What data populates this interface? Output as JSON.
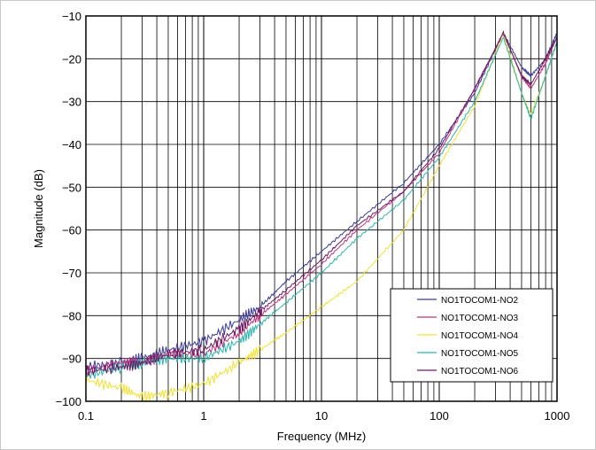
{
  "chart_data": {
    "type": "line",
    "xlabel": "Frequency (MHz)",
    "ylabel": "Magnitude (dB)",
    "xscale": "log",
    "xlim": [
      0.1,
      1000
    ],
    "ylim": [
      -100,
      -10
    ],
    "xticks": [
      "0.1",
      "1",
      "10",
      "100",
      "1000"
    ],
    "yticks": [
      "−10",
      "−20",
      "−30",
      "−40",
      "−50",
      "−60",
      "−70",
      "−80",
      "−90",
      "−100"
    ],
    "grid": true,
    "legend": "bottom-right",
    "x": [
      0.1,
      0.2,
      0.3,
      0.5,
      1,
      2,
      3,
      5,
      10,
      20,
      50,
      100,
      200,
      350,
      500,
      600,
      800,
      1000
    ],
    "series": [
      {
        "name": "NO1TOCOM1-NO2",
        "color": "#3a3a99",
        "values": [
          -92,
          -91,
          -90,
          -88,
          -86,
          -81,
          -78,
          -72,
          -65,
          -58,
          -49,
          -40,
          -28,
          -14,
          -22,
          -24,
          -20,
          -14
        ]
      },
      {
        "name": "NO1TOCOM1-NO3",
        "color": "#c0307a",
        "values": [
          -93,
          -91,
          -91,
          -89,
          -89,
          -84,
          -80,
          -75,
          -68,
          -60,
          -51,
          -42,
          -27,
          -14,
          -24,
          -27,
          -21,
          -15
        ]
      },
      {
        "name": "NO1TOCOM1-NO4",
        "color": "#f2e033",
        "values": [
          -95,
          -97,
          -99,
          -98,
          -96,
          -91,
          -88,
          -84,
          -78,
          -72,
          -60,
          -45,
          -31,
          -14,
          -28,
          -33,
          -24,
          -16
        ]
      },
      {
        "name": "NO1TOCOM1-NO5",
        "color": "#2ab5ae",
        "values": [
          -94,
          -92,
          -91,
          -90,
          -90,
          -86,
          -82,
          -77,
          -70,
          -62,
          -53,
          -43,
          -30,
          -15,
          -28,
          -34,
          -24,
          -16
        ]
      },
      {
        "name": "NO1TOCOM1-NO6",
        "color": "#6b1a66",
        "values": [
          -93,
          -92,
          -91,
          -89,
          -88,
          -83,
          -79,
          -74,
          -67,
          -59,
          -51,
          -41,
          -27,
          -14,
          -24,
          -26,
          -20,
          -15
        ]
      }
    ]
  }
}
